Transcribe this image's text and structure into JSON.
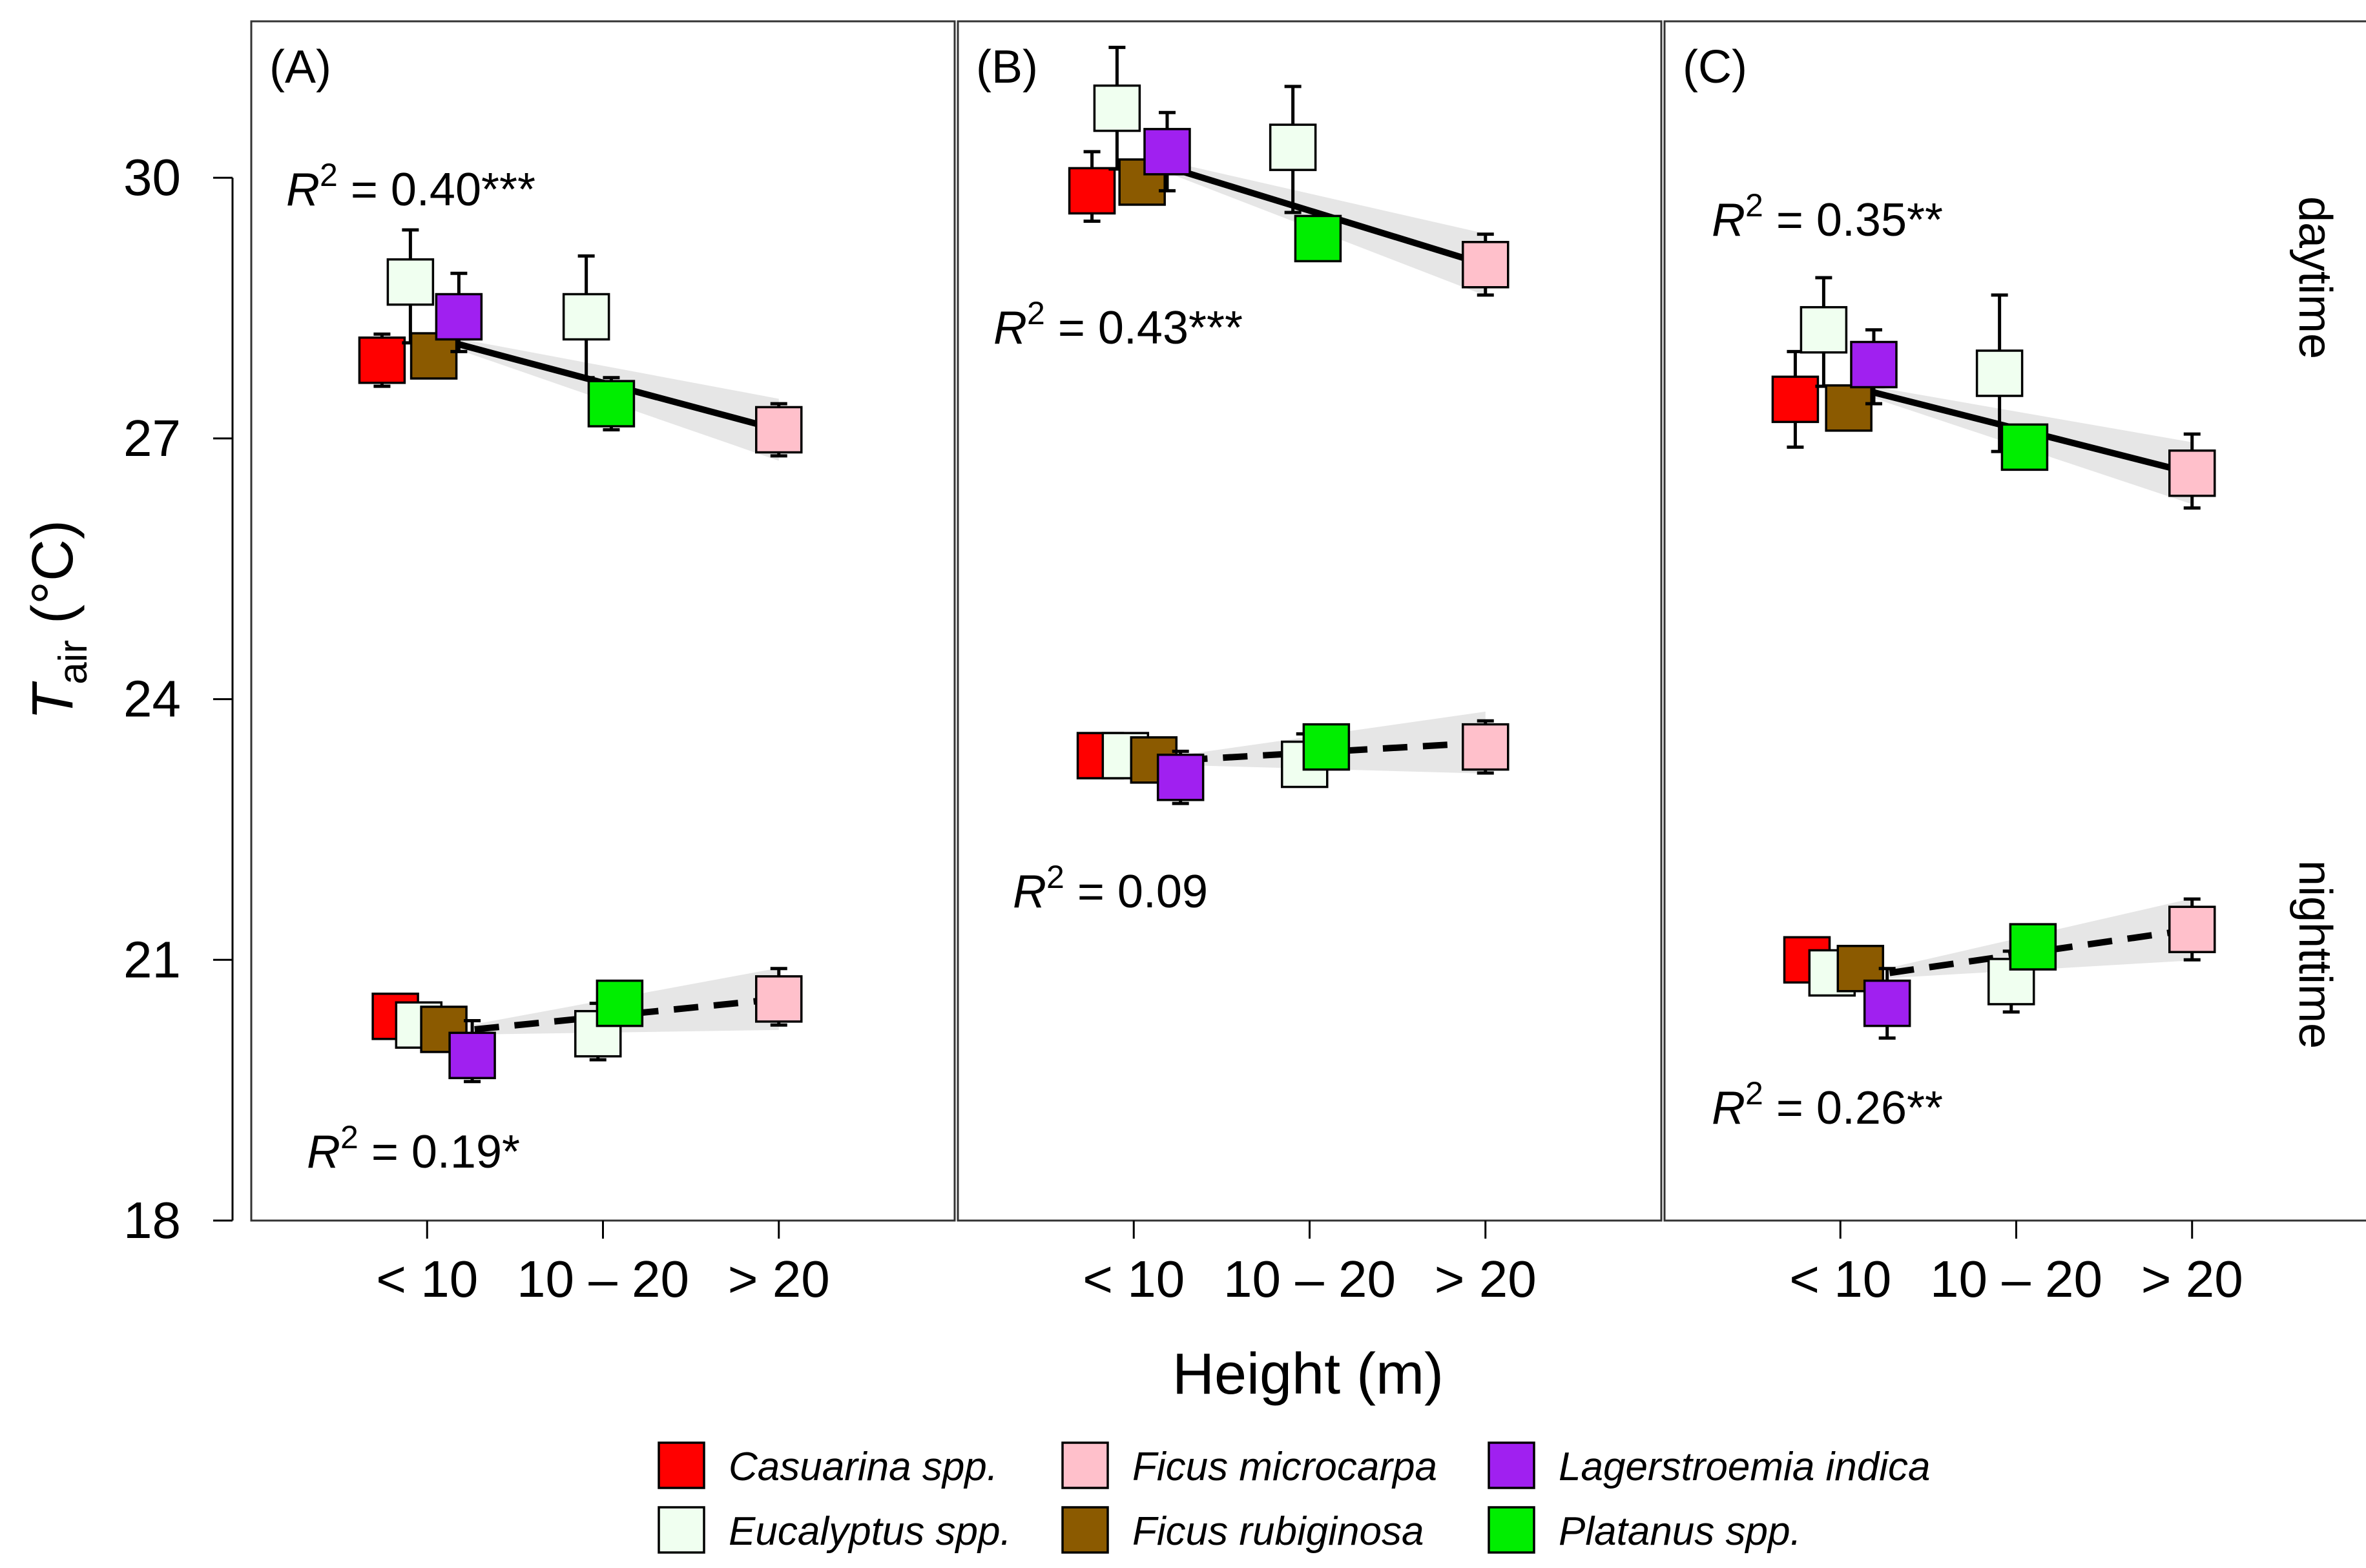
{
  "chart_data": {
    "type": "scatter",
    "y_axis_label_main": "T",
    "y_axis_label_sub": "air",
    "y_axis_label_unit": "(°C)",
    "x_axis_label": "Height (m)",
    "ylim": [
      18,
      31.8
    ],
    "yticks": [
      18,
      21,
      24,
      27,
      30
    ],
    "categories": [
      "< 10",
      "10 – 20",
      "> 20"
    ],
    "periods": [
      "daytime",
      "nighttime"
    ],
    "species": [
      {
        "name": "Casuarina spp.",
        "color": "#ff0000"
      },
      {
        "name": "Eucalyptus spp.",
        "color": "#f0fff0"
      },
      {
        "name": "Ficus microcarpa",
        "color": "#ffc0cb"
      },
      {
        "name": "Ficus rubiginosa",
        "color": "#8b5a00"
      },
      {
        "name": "Lagerstroemia indica",
        "color": "#a020f0"
      },
      {
        "name": "Platanus spp.",
        "color": "#00ee00"
      }
    ],
    "panels": [
      {
        "label": "(A)",
        "day_r2": {
          "prefix": "R",
          "sup": "2",
          "text": " = 0.40***"
        },
        "night_r2": {
          "prefix": "R",
          "sup": "2",
          "text": " = 0.19*"
        },
        "day_points": [
          {
            "species": "Casuarina spp.",
            "cat": 0,
            "offset": -0.27,
            "y": 27.9,
            "lo": 27.6,
            "hi": 28.2
          },
          {
            "species": "Eucalyptus spp.",
            "cat": 0,
            "offset": -0.1,
            "y": 28.8,
            "lo": 28.1,
            "hi": 29.4
          },
          {
            "species": "Ficus rubiginosa",
            "cat": 0,
            "offset": 0.04,
            "y": 27.95,
            "lo": 27.7,
            "hi": 28.2
          },
          {
            "species": "Lagerstroemia indica",
            "cat": 0,
            "offset": 0.19,
            "y": 28.4,
            "lo": 28.0,
            "hi": 28.9
          },
          {
            "species": "Eucalyptus spp.",
            "cat": 1,
            "offset": -0.1,
            "y": 28.4,
            "lo": 27.7,
            "hi": 29.1
          },
          {
            "species": "Platanus spp.",
            "cat": 1,
            "offset": 0.05,
            "y": 27.4,
            "lo": 27.1,
            "hi": 27.7
          },
          {
            "species": "Ficus microcarpa",
            "cat": 2,
            "offset": 0.0,
            "y": 27.1,
            "lo": 26.8,
            "hi": 27.4
          }
        ],
        "night_points": [
          {
            "species": "Casuarina spp.",
            "cat": 0,
            "offset": -0.19,
            "y": 20.35,
            "lo": 20.2,
            "hi": 20.5
          },
          {
            "species": "Eucalyptus spp.",
            "cat": 0,
            "offset": -0.05,
            "y": 20.25,
            "lo": 20.1,
            "hi": 20.4
          },
          {
            "species": "Ficus rubiginosa",
            "cat": 0,
            "offset": 0.1,
            "y": 20.2,
            "lo": 20.05,
            "hi": 20.35
          },
          {
            "species": "Lagerstroemia indica",
            "cat": 0,
            "offset": 0.27,
            "y": 19.9,
            "lo": 19.6,
            "hi": 20.3
          },
          {
            "species": "Eucalyptus spp.",
            "cat": 1,
            "offset": -0.03,
            "y": 20.15,
            "lo": 19.85,
            "hi": 20.5
          },
          {
            "species": "Platanus spp.",
            "cat": 1,
            "offset": 0.1,
            "y": 20.5,
            "lo": 20.3,
            "hi": 20.7
          },
          {
            "species": "Ficus microcarpa",
            "cat": 2,
            "offset": 0.0,
            "y": 20.55,
            "lo": 20.25,
            "hi": 20.9
          }
        ],
        "day_fit": {
          "x": [
            0.15,
            2.0
          ],
          "y": [
            28.1,
            27.1
          ]
        },
        "night_fit": {
          "x": [
            0.27,
            2.0
          ],
          "y": [
            20.2,
            20.55
          ]
        }
      },
      {
        "label": "(B)",
        "day_r2": {
          "prefix": "R",
          "sup": "2",
          "text": " = 0.43***"
        },
        "night_r2": {
          "prefix": "R",
          "sup": "2",
          "text": " = 0.09"
        },
        "day_points": [
          {
            "species": "Casuarina spp.",
            "cat": 0,
            "offset": -0.25,
            "y": 29.85,
            "lo": 29.5,
            "hi": 30.3
          },
          {
            "species": "Eucalyptus spp.",
            "cat": 0,
            "offset": -0.1,
            "y": 30.8,
            "lo": 30.1,
            "hi": 31.5
          },
          {
            "species": "Ficus rubiginosa",
            "cat": 0,
            "offset": 0.05,
            "y": 29.95,
            "lo": 29.7,
            "hi": 30.2
          },
          {
            "species": "Lagerstroemia indica",
            "cat": 0,
            "offset": 0.2,
            "y": 30.3,
            "lo": 29.85,
            "hi": 30.75
          },
          {
            "species": "Eucalyptus spp.",
            "cat": 1,
            "offset": -0.1,
            "y": 30.35,
            "lo": 29.6,
            "hi": 31.05
          },
          {
            "species": "Platanus spp.",
            "cat": 1,
            "offset": 0.05,
            "y": 29.3,
            "lo": 29.1,
            "hi": 29.55
          },
          {
            "species": "Ficus microcarpa",
            "cat": 2,
            "offset": 0.0,
            "y": 29.0,
            "lo": 28.65,
            "hi": 29.35
          }
        ],
        "night_points": [
          {
            "species": "Casuarina spp.",
            "cat": 0,
            "offset": -0.2,
            "y": 23.35,
            "lo": 23.2,
            "hi": 23.5
          },
          {
            "species": "Eucalyptus spp.",
            "cat": 0,
            "offset": -0.05,
            "y": 23.35,
            "lo": 23.2,
            "hi": 23.5
          },
          {
            "species": "Ficus rubiginosa",
            "cat": 0,
            "offset": 0.12,
            "y": 23.3,
            "lo": 23.1,
            "hi": 23.45
          },
          {
            "species": "Lagerstroemia indica",
            "cat": 0,
            "offset": 0.28,
            "y": 23.1,
            "lo": 22.8,
            "hi": 23.4
          },
          {
            "species": "Eucalyptus spp.",
            "cat": 1,
            "offset": -0.03,
            "y": 23.25,
            "lo": 23.0,
            "hi": 23.6
          },
          {
            "species": "Platanus spp.",
            "cat": 1,
            "offset": 0.1,
            "y": 23.45,
            "lo": 23.25,
            "hi": 23.65
          },
          {
            "species": "Ficus microcarpa",
            "cat": 2,
            "offset": 0.0,
            "y": 23.45,
            "lo": 23.15,
            "hi": 23.75
          }
        ],
        "day_fit": {
          "x": [
            0.15,
            2.0
          ],
          "y": [
            30.15,
            29.0
          ]
        },
        "night_fit": {
          "x": [
            0.28,
            2.0
          ],
          "y": [
            23.3,
            23.5
          ]
        }
      },
      {
        "label": "(C)",
        "day_r2": {
          "prefix": "R",
          "sup": "2",
          "text": " = 0.35**"
        },
        "night_r2": {
          "prefix": "R",
          "sup": "2",
          "text": " = 0.26**"
        },
        "day_points": [
          {
            "species": "Casuarina spp.",
            "cat": 0,
            "offset": -0.27,
            "y": 27.45,
            "lo": 26.9,
            "hi": 28.0
          },
          {
            "species": "Eucalyptus spp.",
            "cat": 0,
            "offset": -0.1,
            "y": 28.25,
            "lo": 27.6,
            "hi": 28.85
          },
          {
            "species": "Ficus rubiginosa",
            "cat": 0,
            "offset": 0.05,
            "y": 27.35,
            "lo": 27.1,
            "hi": 27.6
          },
          {
            "species": "Lagerstroemia indica",
            "cat": 0,
            "offset": 0.2,
            "y": 27.85,
            "lo": 27.4,
            "hi": 28.25
          },
          {
            "species": "Eucalyptus spp.",
            "cat": 1,
            "offset": -0.1,
            "y": 27.75,
            "lo": 26.85,
            "hi": 28.65
          },
          {
            "species": "Platanus spp.",
            "cat": 1,
            "offset": 0.05,
            "y": 26.9,
            "lo": 26.7,
            "hi": 27.1
          },
          {
            "species": "Ficus microcarpa",
            "cat": 2,
            "offset": 0.0,
            "y": 26.6,
            "lo": 26.2,
            "hi": 27.05
          }
        ],
        "night_points": [
          {
            "species": "Casuarina spp.",
            "cat": 0,
            "offset": -0.2,
            "y": 21.0,
            "lo": 20.85,
            "hi": 21.15
          },
          {
            "species": "Eucalyptus spp.",
            "cat": 0,
            "offset": -0.05,
            "y": 20.85,
            "lo": 20.7,
            "hi": 21.0
          },
          {
            "species": "Ficus rubiginosa",
            "cat": 0,
            "offset": 0.12,
            "y": 20.9,
            "lo": 20.7,
            "hi": 21.05
          },
          {
            "species": "Lagerstroemia indica",
            "cat": 0,
            "offset": 0.28,
            "y": 20.5,
            "lo": 20.1,
            "hi": 20.9
          },
          {
            "species": "Eucalyptus spp.",
            "cat": 1,
            "offset": -0.03,
            "y": 20.75,
            "lo": 20.4,
            "hi": 21.1
          },
          {
            "species": "Platanus spp.",
            "cat": 1,
            "offset": 0.1,
            "y": 21.15,
            "lo": 20.95,
            "hi": 21.35
          },
          {
            "species": "Ficus microcarpa",
            "cat": 2,
            "offset": 0.0,
            "y": 21.35,
            "lo": 21.0,
            "hi": 21.7
          }
        ],
        "day_fit": {
          "x": [
            0.15,
            2.0
          ],
          "y": [
            27.55,
            26.6
          ]
        },
        "night_fit": {
          "x": [
            0.28,
            2.0
          ],
          "y": [
            20.85,
            21.35
          ]
        }
      }
    ]
  }
}
